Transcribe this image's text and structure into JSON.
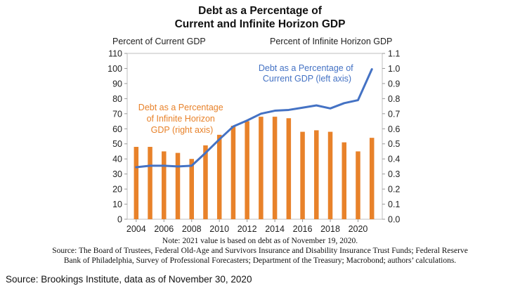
{
  "chart_data": {
    "type": "bar-line",
    "title_lines": [
      "Debt as a Percentage of",
      "Current and Infinite Horizon GDP"
    ],
    "left_axis": {
      "label": "Percent of Current GDP",
      "min": 0,
      "max": 110,
      "step": 10
    },
    "right_axis": {
      "label": "Percent of Infinite  Horizon  GDP",
      "min": 0,
      "max": 1.1,
      "step": 0.1
    },
    "x_ticks": [
      "2004",
      "2006",
      "2008",
      "2010",
      "2012",
      "2014",
      "2016",
      "2018",
      "2020"
    ],
    "bar_series": {
      "label_lines": [
        "Debt as a Percentage",
        "of Infinite Horizon",
        "GDP (right axis)"
      ],
      "color": "#E8822A",
      "x": [
        2004,
        2005,
        2006,
        2007,
        2008,
        2009,
        2010,
        2011,
        2012,
        2013,
        2014,
        2015,
        2016,
        2017,
        2018,
        2019,
        2020,
        2021
      ],
      "values": [
        0.48,
        0.48,
        0.45,
        0.44,
        0.4,
        0.49,
        0.56,
        0.62,
        0.65,
        0.68,
        0.68,
        0.67,
        0.58,
        0.59,
        0.58,
        0.51,
        0.45,
        0.54
      ]
    },
    "line_series": {
      "label_lines": [
        "Debt as a Percentage of",
        "Current GDP (left axis)"
      ],
      "color": "#4472C4",
      "x": [
        2004,
        2005,
        2006,
        2007,
        2008,
        2009,
        2010,
        2011,
        2012,
        2013,
        2014,
        2015,
        2016,
        2017,
        2018,
        2019,
        2020,
        2021
      ],
      "values": [
        34.5,
        35.5,
        35.5,
        35.0,
        35.5,
        44.0,
        53.0,
        61.5,
        65.5,
        70.0,
        72.0,
        72.5,
        74.0,
        75.5,
        73.5,
        77.0,
        79.0,
        99.5
      ]
    }
  },
  "note": "Note: 2021 value is based on debt as of November 19, 2020.",
  "source_lines": [
    "Source: The Board of Trustees, Federal Old-Age and Survivors Insurance and Disability Insurance Trust Funds; Federal Reserve",
    "Bank of Philadelphia, Survey of Professional Forecasters; Department of the Treasury; Macrobond; authors’ calculations."
  ],
  "footer_source": "Source: Brookings Institute, data as of November 30, 2020"
}
